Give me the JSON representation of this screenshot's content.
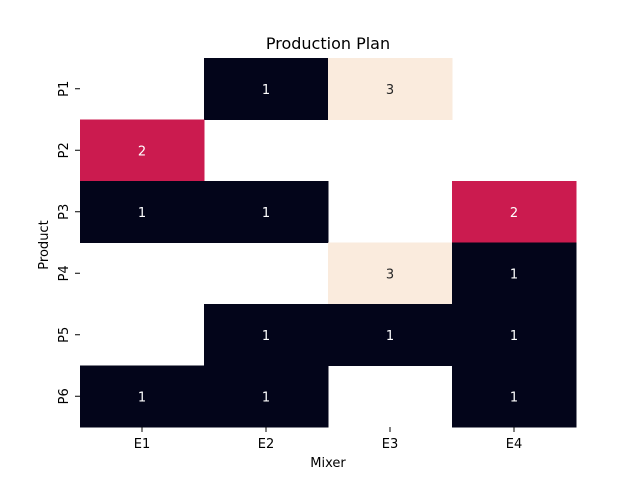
{
  "chart_data": {
    "type": "heatmap",
    "title": "Production Plan",
    "xlabel": "Mixer",
    "ylabel": "Product",
    "x_categories": [
      "E1",
      "E2",
      "E3",
      "E4"
    ],
    "y_categories": [
      "P1",
      "P2",
      "P3",
      "P4",
      "P5",
      "P6"
    ],
    "values": [
      [
        null,
        1,
        3,
        null
      ],
      [
        2,
        null,
        null,
        null
      ],
      [
        1,
        1,
        null,
        2
      ],
      [
        null,
        null,
        3,
        1
      ],
      [
        null,
        1,
        1,
        1
      ],
      [
        1,
        1,
        null,
        1
      ]
    ],
    "colorbar": false,
    "color_map": {
      "1": "#03051a",
      "2": "#cb1b4f",
      "3": "#faebdd"
    },
    "empty_color": "#ffffff",
    "annotation_colors": {
      "dark": "#ffffff",
      "light": "#262626"
    }
  }
}
